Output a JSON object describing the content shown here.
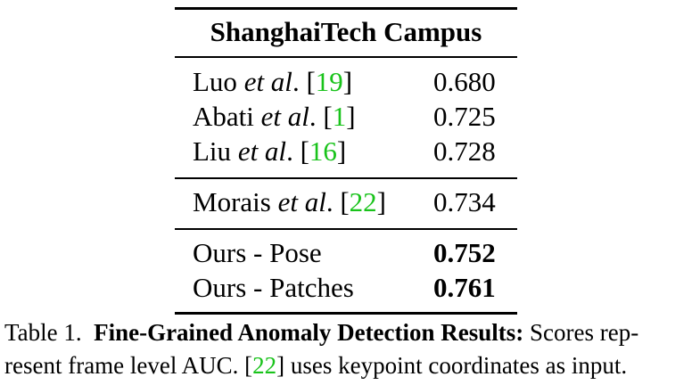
{
  "table": {
    "header": "ShanghaiTech Campus",
    "rows": [
      {
        "author": "Luo",
        "etal": "et al",
        "dot": ".",
        "open": " [",
        "ref": "19",
        "close": "]",
        "score": "0.680",
        "best": false
      },
      {
        "author": "Abati",
        "etal": "et al",
        "dot": ".",
        "open": " [",
        "ref": "1",
        "close": "]",
        "score": "0.725",
        "best": false
      },
      {
        "author": "Liu",
        "etal": "et al",
        "dot": ".",
        "open": " [",
        "ref": "16",
        "close": "]",
        "score": "0.728",
        "best": false
      },
      {
        "author": "Morais",
        "etal": "et al",
        "dot": ".",
        "open": " [",
        "ref": "22",
        "close": "]",
        "score": "0.734",
        "best": false
      },
      {
        "name": "Ours - Pose",
        "score": "0.752",
        "best": true
      },
      {
        "name": "Ours - Patches",
        "score": "0.761",
        "best": true
      }
    ]
  },
  "caption": {
    "label": "Table 1.",
    "title": "Fine-Grained Anomaly Detection Results:",
    "line1_rest": " Scores rep-",
    "line2_start": "resent frame level AUC. [",
    "line2_ref": "22",
    "line2_end": "] uses keypoint coordinates as input."
  }
}
